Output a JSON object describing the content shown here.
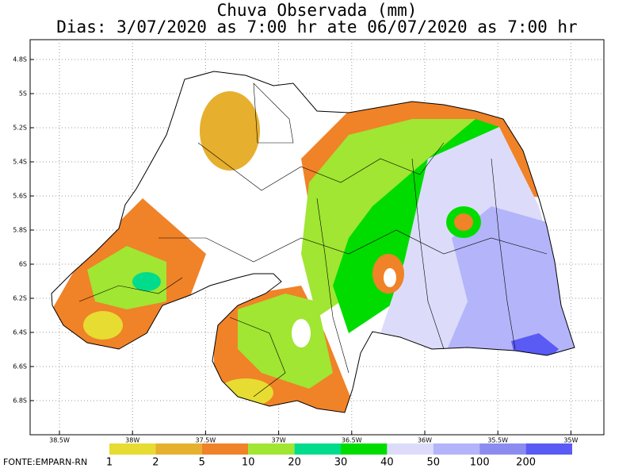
{
  "title": "Chuva Observada (mm)",
  "subtitle": "Dias: 3/07/2020 as 7:00 hr ate 06/07/2020 as 7:00 hr",
  "lat_labels": [
    "4.8S",
    "5S",
    "5.2S",
    "5.4S",
    "5.6S",
    "5.8S",
    "6S",
    "6.2S",
    "6.4S",
    "6.6S",
    "6.8S"
  ],
  "lon_labels": [
    "38.5W",
    "38W",
    "37.5W",
    "37W",
    "36.5W",
    "36W",
    "35.5W",
    "35W"
  ],
  "legend": {
    "labels": [
      1,
      2,
      5,
      10,
      20,
      30,
      40,
      50,
      100,
      200
    ],
    "colors": [
      "#e6dc32",
      "#e6af2d",
      "#f08228",
      "#a0e632",
      "#00dc8c",
      "#00dc00",
      "#dcdcfa",
      "#b4b4fa",
      "#8c8cf0",
      "#5a5af5"
    ]
  },
  "source": "FONTE:EMPARN-RN"
}
